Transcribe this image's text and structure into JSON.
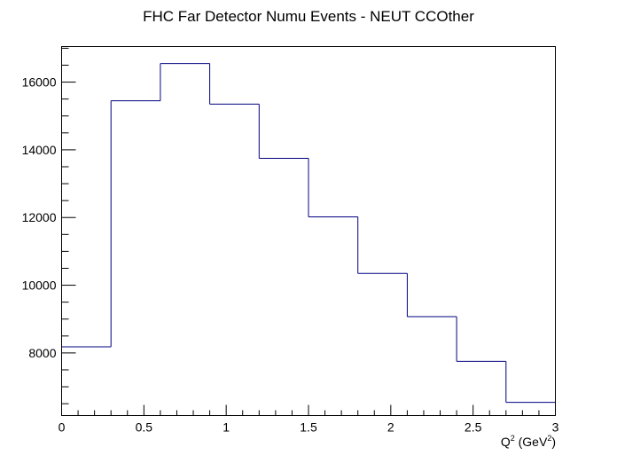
{
  "chart_data": {
    "type": "histogram",
    "title": "FHC Far Detector Numu Events - NEUT CCOther",
    "xlabel": {
      "base": "Q",
      "sup": "2",
      "unit_prefix": " (GeV",
      "unit_sup": "2",
      "unit_suffix": ")"
    },
    "ylabel": "",
    "xlim": [
      0,
      3
    ],
    "ylim": [
      6150,
      17050
    ],
    "bin_edges": [
      0,
      0.3,
      0.6,
      0.9,
      1.2,
      1.5,
      1.8,
      2.1,
      2.4,
      2.7,
      3.0
    ],
    "values": [
      8180,
      15450,
      16550,
      15350,
      13750,
      12020,
      10350,
      9070,
      7750,
      6540
    ],
    "x_ticks": [
      {
        "value": 0,
        "label": "0"
      },
      {
        "value": 0.5,
        "label": "0.5"
      },
      {
        "value": 1,
        "label": "1"
      },
      {
        "value": 1.5,
        "label": "1.5"
      },
      {
        "value": 2,
        "label": "2"
      },
      {
        "value": 2.5,
        "label": "2.5"
      },
      {
        "value": 3,
        "label": "3"
      }
    ],
    "y_ticks": [
      {
        "value": 8000,
        "label": "8000"
      },
      {
        "value": 10000,
        "label": "10000"
      },
      {
        "value": 12000,
        "label": "12000"
      },
      {
        "value": 14000,
        "label": "14000"
      },
      {
        "value": 16000,
        "label": "16000"
      }
    ],
    "line_color": "#000080",
    "axis_color": "#000000",
    "grid": false,
    "legend": "none"
  }
}
